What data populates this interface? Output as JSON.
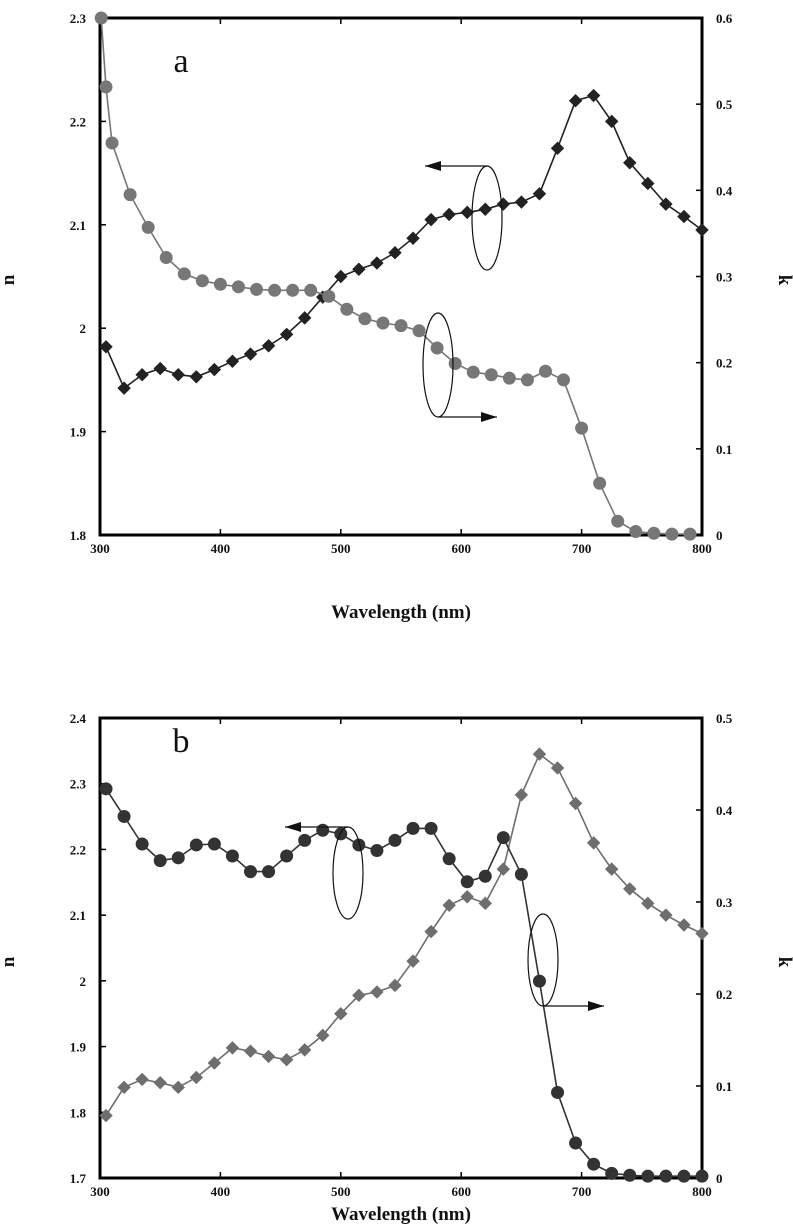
{
  "chart_data": [
    {
      "type": "line",
      "panel_label": "a",
      "xlabel": "Wavelength (nm)",
      "ylabel": "n",
      "y2label": "k",
      "xlim": [
        300,
        800
      ],
      "ylim": [
        1.8,
        2.3
      ],
      "y2lim": [
        0,
        0.6
      ],
      "x_ticks": [
        "300",
        "400",
        "500",
        "600",
        "700",
        "800"
      ],
      "y_ticks": [
        "1.8",
        "1.9",
        "2",
        "2.1",
        "2.2",
        "2.3"
      ],
      "y2_ticks": [
        "0",
        "0.1",
        "0.2",
        "0.3",
        "0.4",
        "0.5",
        "0.6"
      ],
      "grid": false,
      "series": [
        {
          "axis": "left",
          "marker": "diamond",
          "color": "#222222",
          "x": [
            305,
            320,
            335,
            350,
            365,
            380,
            395,
            410,
            425,
            440,
            455,
            470,
            485,
            500,
            515,
            530,
            545,
            560,
            575,
            590,
            605,
            620,
            635,
            650,
            665,
            680,
            695,
            710,
            725,
            740,
            755,
            770,
            785,
            800
          ],
          "y": [
            1.982,
            1.942,
            1.955,
            1.961,
            1.955,
            1.953,
            1.96,
            1.968,
            1.975,
            1.983,
            1.994,
            2.01,
            2.03,
            2.05,
            2.057,
            2.063,
            2.073,
            2.087,
            2.105,
            2.11,
            2.112,
            2.115,
            2.12,
            2.122,
            2.13,
            2.174,
            2.22,
            2.225,
            2.2,
            2.16,
            2.14,
            2.12,
            2.108,
            2.095
          ]
        },
        {
          "axis": "right",
          "marker": "circle",
          "color": "#777777",
          "x": [
            301,
            305,
            310,
            325,
            340,
            355,
            370,
            385,
            400,
            415,
            430,
            445,
            460,
            475,
            490,
            505,
            520,
            535,
            550,
            565,
            580,
            595,
            610,
            625,
            640,
            655,
            670,
            685,
            700,
            715,
            730,
            745,
            760,
            775,
            790
          ],
          "y": [
            0.6,
            0.52,
            0.455,
            0.395,
            0.357,
            0.322,
            0.303,
            0.295,
            0.291,
            0.288,
            0.285,
            0.284,
            0.284,
            0.284,
            0.277,
            0.262,
            0.251,
            0.246,
            0.243,
            0.237,
            0.217,
            0.199,
            0.189,
            0.186,
            0.182,
            0.18,
            0.19,
            0.18,
            0.124,
            0.06,
            0.016,
            0.004,
            0.002,
            0.001,
            0.001
          ]
        }
      ],
      "annotations": [
        {
          "type": "ellipse-arrow",
          "target": "left",
          "direction": "left"
        },
        {
          "type": "ellipse-arrow",
          "target": "right",
          "direction": "right"
        }
      ]
    },
    {
      "type": "line",
      "panel_label": "b",
      "xlabel": "Wavelength (nm)",
      "ylabel": "n",
      "y2label": "k",
      "xlim": [
        300,
        800
      ],
      "ylim": [
        1.7,
        2.4
      ],
      "y2lim": [
        0,
        0.5
      ],
      "x_ticks": [
        "300",
        "400",
        "500",
        "600",
        "700",
        "800"
      ],
      "y_ticks": [
        "1.7",
        "1.8",
        "1.9",
        "2",
        "2.1",
        "2.2",
        "2.3",
        "2.4"
      ],
      "y2_ticks": [
        "0",
        "0.1",
        "0.2",
        "0.3",
        "0.4",
        "0.5"
      ],
      "grid": false,
      "series": [
        {
          "axis": "left",
          "marker": "diamond",
          "color": "#6e6e6e",
          "x": [
            305,
            320,
            335,
            350,
            365,
            380,
            395,
            410,
            425,
            440,
            455,
            470,
            485,
            500,
            515,
            530,
            545,
            560,
            575,
            590,
            605,
            620,
            635,
            650,
            665,
            680,
            695,
            710,
            725,
            740,
            755,
            770,
            785,
            800
          ],
          "y": [
            1.795,
            1.838,
            1.85,
            1.845,
            1.838,
            1.853,
            1.875,
            1.898,
            1.893,
            1.885,
            1.88,
            1.895,
            1.917,
            1.95,
            1.978,
            1.983,
            1.993,
            2.03,
            2.075,
            2.115,
            2.128,
            2.118,
            2.17,
            2.283,
            2.345,
            2.324,
            2.27,
            2.21,
            2.17,
            2.14,
            2.118,
            2.1,
            2.085,
            2.072
          ]
        },
        {
          "axis": "right",
          "marker": "circle",
          "color": "#333333",
          "x": [
            305,
            320,
            335,
            350,
            365,
            380,
            395,
            410,
            425,
            440,
            455,
            470,
            485,
            500,
            515,
            530,
            545,
            560,
            575,
            590,
            605,
            620,
            635,
            650,
            665,
            680,
            695,
            710,
            725,
            740,
            755,
            770,
            785,
            800
          ],
          "y": [
            0.423,
            0.393,
            0.363,
            0.345,
            0.348,
            0.362,
            0.363,
            0.35,
            0.333,
            0.333,
            0.35,
            0.367,
            0.378,
            0.374,
            0.362,
            0.356,
            0.367,
            0.38,
            0.38,
            0.347,
            0.322,
            0.328,
            0.37,
            0.33,
            0.214,
            0.093,
            0.038,
            0.015,
            0.005,
            0.003,
            0.002,
            0.002,
            0.002,
            0.002
          ]
        }
      ],
      "annotations": [
        {
          "type": "ellipse-arrow",
          "target": "left",
          "direction": "left"
        },
        {
          "type": "ellipse-arrow",
          "target": "right",
          "direction": "right"
        }
      ]
    }
  ]
}
